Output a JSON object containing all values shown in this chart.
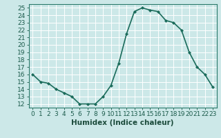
{
  "x": [
    0,
    1,
    2,
    3,
    4,
    5,
    6,
    7,
    8,
    9,
    10,
    11,
    12,
    13,
    14,
    15,
    16,
    17,
    18,
    19,
    20,
    21,
    22,
    23
  ],
  "y": [
    16,
    15,
    14.8,
    14,
    13.5,
    13,
    12,
    12,
    12,
    13,
    14.5,
    17.5,
    21.5,
    24.5,
    25,
    24.7,
    24.5,
    23.3,
    23,
    22,
    19,
    17,
    16,
    14.3
  ],
  "line_color": "#1a6b5a",
  "marker": "D",
  "marker_size": 2.2,
  "bg_color": "#cce8e8",
  "grid_color": "#ffffff",
  "xlabel": "Humidex (Indice chaleur)",
  "xlim": [
    -0.5,
    23.5
  ],
  "ylim": [
    11.5,
    25.5
  ],
  "xticks": [
    0,
    1,
    2,
    3,
    4,
    5,
    6,
    7,
    8,
    9,
    10,
    11,
    12,
    13,
    14,
    15,
    16,
    17,
    18,
    19,
    20,
    21,
    22,
    23
  ],
  "yticks": [
    12,
    13,
    14,
    15,
    16,
    17,
    18,
    19,
    20,
    21,
    22,
    23,
    24,
    25
  ],
  "xlabel_fontsize": 7.5,
  "tick_fontsize": 6.5,
  "linewidth": 1.2,
  "spine_color": "#2a7a6a"
}
